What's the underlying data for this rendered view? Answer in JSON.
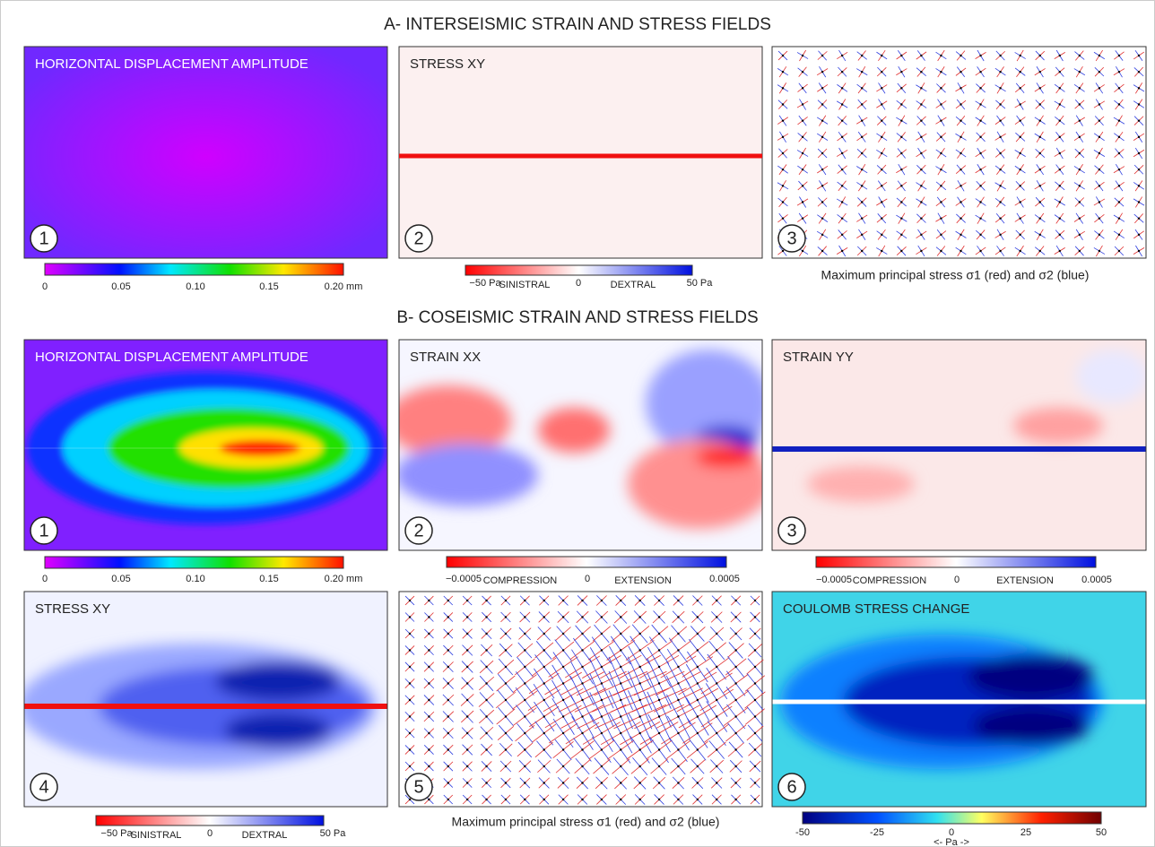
{
  "section_a": {
    "title": "A- INTERSEISMIC STRAIN AND STRESS FIELDS",
    "panels": [
      {
        "number": "1",
        "label": "HORIZONTAL DISPLACEMENT AMPLITUDE",
        "colorbar": [
          "0",
          "0.05",
          "0.10",
          "0.15",
          "0.20 mm"
        ]
      },
      {
        "number": "2",
        "label": "STRESS XY",
        "colorbar": [
          "−50 Pa",
          "SINISTRAL",
          "0",
          "DEXTRAL",
          "50 Pa"
        ]
      },
      {
        "number": "3",
        "caption": "Maximum principal stress σ1 (red) and σ2 (blue)"
      }
    ]
  },
  "section_b": {
    "title": "B- COSEISMIC STRAIN AND STRESS FIELDS",
    "panels": [
      {
        "number": "1",
        "label": "HORIZONTAL DISPLACEMENT AMPLITUDE",
        "colorbar": [
          "0",
          "0.05",
          "0.10",
          "0.15",
          "0.20 mm"
        ]
      },
      {
        "number": "2",
        "label": "STRAIN XX",
        "colorbar": [
          "−0.0005",
          "COMPRESSION",
          "0",
          "EXTENSION",
          "0.0005"
        ]
      },
      {
        "number": "3",
        "label": "STRAIN YY",
        "colorbar": [
          "−0.0005",
          "COMPRESSION",
          "0",
          "EXTENSION",
          "0.0005"
        ]
      },
      {
        "number": "4",
        "label": "STRESS XY",
        "colorbar": [
          "−50 Pa",
          "SINISTRAL",
          "0",
          "DEXTRAL",
          "50 Pa"
        ]
      },
      {
        "number": "5",
        "caption": "Maximum principal stress σ1 (red) and σ2 (blue)"
      },
      {
        "number": "6",
        "label": "COULOMB STRESS CHANGE",
        "colorbar": [
          "-50",
          "-25",
          "0",
          "25",
          "50",
          "<- Pa ->"
        ]
      }
    ]
  }
}
